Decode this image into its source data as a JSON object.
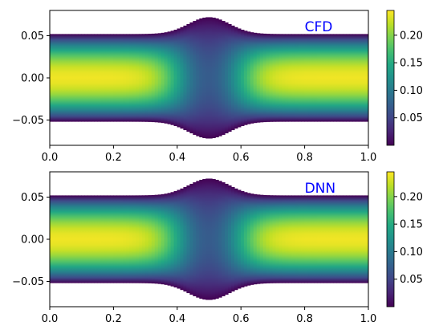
{
  "colormap": "viridis",
  "colors": {
    "label": "#0000ff",
    "axis": "#000000"
  },
  "chart_data": [
    {
      "type": "heatmap",
      "label": "CFD",
      "xlim": [
        0,
        1
      ],
      "ylim": [
        -0.08,
        0.08
      ],
      "x_ticks": [
        "0.0",
        "0.2",
        "0.4",
        "0.6",
        "0.8",
        "1.0"
      ],
      "y_ticks": [
        "0.05",
        "0.00",
        "−0.05"
      ],
      "wall_halfwidth": {
        "base": 0.052,
        "peak": 0.072,
        "peak_x": 0.5,
        "width": 0.09
      },
      "colorbar": {
        "range": [
          0.0,
          0.245
        ],
        "ticks": [
          "0.05",
          "0.10",
          "0.15",
          "0.20"
        ]
      },
      "max_value": 0.24,
      "grid": false
    },
    {
      "type": "heatmap",
      "label": "DNN",
      "xlim": [
        0,
        1
      ],
      "ylim": [
        -0.08,
        0.08
      ],
      "x_ticks": [
        "0.0",
        "0.2",
        "0.4",
        "0.6",
        "0.8",
        "1.0"
      ],
      "y_ticks": [
        "0.05",
        "0.00",
        "−0.05"
      ],
      "wall_halfwidth": {
        "base": 0.052,
        "peak": 0.072,
        "peak_x": 0.5,
        "width": 0.09
      },
      "colorbar": {
        "range": [
          0.0,
          0.245
        ],
        "ticks": [
          "0.05",
          "0.10",
          "0.15",
          "0.20"
        ]
      },
      "max_value": 0.24,
      "grid": false
    }
  ]
}
